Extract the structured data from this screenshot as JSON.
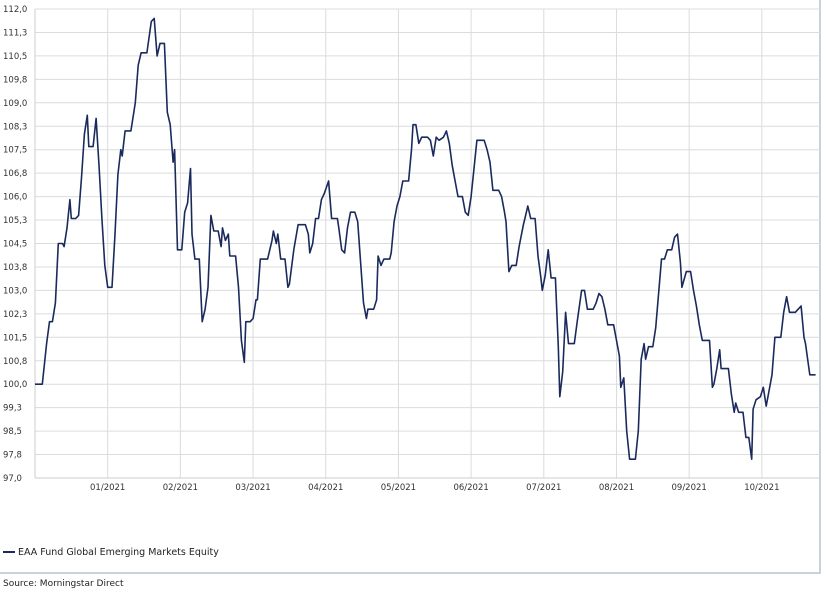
{
  "colors": {
    "series": "#1a2a5c",
    "grid": "#dcdcdc",
    "background": "#ffffff"
  },
  "legend": {
    "label": "EAA Fund Global Emerging Markets Equity"
  },
  "source": {
    "text": "Source: Morningstar Direct"
  },
  "chart_data": {
    "type": "line",
    "title": "",
    "xlabel": "",
    "ylabel": "",
    "ylim": [
      97.0,
      112.0
    ],
    "y_ticks": [
      "112,0",
      "111,3",
      "110,5",
      "109,8",
      "109,0",
      "108,3",
      "107,5",
      "106,8",
      "106,0",
      "105,3",
      "104,5",
      "103,8",
      "103,0",
      "102,3",
      "101,5",
      "100,8",
      "100,0",
      "99,3",
      "98,5",
      "97,8",
      "97,0"
    ],
    "y_tick_values": [
      112.0,
      111.25,
      110.5,
      109.75,
      109.0,
      108.25,
      107.5,
      106.75,
      106.0,
      105.25,
      104.5,
      103.75,
      103.0,
      102.25,
      101.5,
      100.75,
      100.0,
      99.25,
      98.5,
      97.75,
      97.0
    ],
    "x_ticks": [
      "01/2021",
      "02/2021",
      "03/2021",
      "04/2021",
      "05/2021",
      "06/2021",
      "07/2021",
      "08/2021",
      "09/2021",
      "10/2021"
    ],
    "x_tick_positions": [
      5,
      10,
      15,
      20,
      25,
      30,
      35,
      40,
      45,
      50
    ],
    "grid": true,
    "legend_position": "bottom-left",
    "series": [
      {
        "name": "EAA Fund Global Emerging Markets Equity",
        "points": [
          [
            0.0,
            100.0
          ],
          [
            0.5,
            100.0
          ],
          [
            0.8,
            101.3
          ],
          [
            1.0,
            102.0
          ],
          [
            1.2,
            102.0
          ],
          [
            1.4,
            102.6
          ],
          [
            1.6,
            104.5
          ],
          [
            1.9,
            104.5
          ],
          [
            2.0,
            104.4
          ],
          [
            2.2,
            105.0
          ],
          [
            2.4,
            105.9
          ],
          [
            2.5,
            105.3
          ],
          [
            2.8,
            105.3
          ],
          [
            3.0,
            105.4
          ],
          [
            3.2,
            106.6
          ],
          [
            3.4,
            108.0
          ],
          [
            3.6,
            108.6
          ],
          [
            3.7,
            107.6
          ],
          [
            4.0,
            107.6
          ],
          [
            4.2,
            108.5
          ],
          [
            4.4,
            107.0
          ],
          [
            4.6,
            105.3
          ],
          [
            4.8,
            103.8
          ],
          [
            5.0,
            103.1
          ],
          [
            5.3,
            103.1
          ],
          [
            5.5,
            104.8
          ],
          [
            5.7,
            106.7
          ],
          [
            5.9,
            107.5
          ],
          [
            6.0,
            107.3
          ],
          [
            6.2,
            108.1
          ],
          [
            6.6,
            108.1
          ],
          [
            6.9,
            109.0
          ],
          [
            7.1,
            110.2
          ],
          [
            7.3,
            110.6
          ],
          [
            7.5,
            110.6
          ],
          [
            7.7,
            110.6
          ],
          [
            8.0,
            111.6
          ],
          [
            8.2,
            111.7
          ],
          [
            8.4,
            110.5
          ],
          [
            8.6,
            110.9
          ],
          [
            8.9,
            110.9
          ],
          [
            9.1,
            108.7
          ],
          [
            9.3,
            108.3
          ],
          [
            9.5,
            107.1
          ],
          [
            9.6,
            107.5
          ],
          [
            9.8,
            104.3
          ],
          [
            10.1,
            104.3
          ],
          [
            10.3,
            105.5
          ],
          [
            10.5,
            105.8
          ],
          [
            10.7,
            106.9
          ],
          [
            10.8,
            104.8
          ],
          [
            11.0,
            104.0
          ],
          [
            11.3,
            104.0
          ],
          [
            11.5,
            102.0
          ],
          [
            11.7,
            102.4
          ],
          [
            11.9,
            103.1
          ],
          [
            12.1,
            105.4
          ],
          [
            12.3,
            104.9
          ],
          [
            12.6,
            104.9
          ],
          [
            12.8,
            104.4
          ],
          [
            12.9,
            105.0
          ],
          [
            13.1,
            104.6
          ],
          [
            13.3,
            104.8
          ],
          [
            13.4,
            104.1
          ],
          [
            13.8,
            104.1
          ],
          [
            14.0,
            103.1
          ],
          [
            14.2,
            101.4
          ],
          [
            14.4,
            100.7
          ],
          [
            14.5,
            102.0
          ],
          [
            14.8,
            102.0
          ],
          [
            15.0,
            102.1
          ],
          [
            15.2,
            102.7
          ],
          [
            15.3,
            102.7
          ],
          [
            15.5,
            104.0
          ],
          [
            15.9,
            104.0
          ],
          [
            16.0,
            104.0
          ],
          [
            16.3,
            104.6
          ],
          [
            16.4,
            104.9
          ],
          [
            16.6,
            104.5
          ],
          [
            16.7,
            104.8
          ],
          [
            16.9,
            104.0
          ],
          [
            17.2,
            104.0
          ],
          [
            17.4,
            103.1
          ],
          [
            17.5,
            103.2
          ],
          [
            17.8,
            104.3
          ],
          [
            18.1,
            105.1
          ],
          [
            18.6,
            105.1
          ],
          [
            18.8,
            104.8
          ],
          [
            18.9,
            104.2
          ],
          [
            19.1,
            104.5
          ],
          [
            19.3,
            105.3
          ],
          [
            19.5,
            105.3
          ],
          [
            19.7,
            105.9
          ],
          [
            19.9,
            106.1
          ],
          [
            20.2,
            106.5
          ],
          [
            20.4,
            105.3
          ],
          [
            20.8,
            105.3
          ],
          [
            20.9,
            105.0
          ],
          [
            21.1,
            104.3
          ],
          [
            21.3,
            104.2
          ],
          [
            21.5,
            105.0
          ],
          [
            21.7,
            105.5
          ],
          [
            22.0,
            105.5
          ],
          [
            22.2,
            105.2
          ],
          [
            22.4,
            103.9
          ],
          [
            22.6,
            102.6
          ],
          [
            22.8,
            102.1
          ],
          [
            22.9,
            102.4
          ],
          [
            23.3,
            102.4
          ],
          [
            23.5,
            102.7
          ],
          [
            23.6,
            104.1
          ],
          [
            23.8,
            103.8
          ],
          [
            24.0,
            104.0
          ],
          [
            24.4,
            104.0
          ],
          [
            24.5,
            104.2
          ],
          [
            24.7,
            105.2
          ],
          [
            24.9,
            105.7
          ],
          [
            25.1,
            106.0
          ],
          [
            25.3,
            106.5
          ],
          [
            25.7,
            106.5
          ],
          [
            25.9,
            107.5
          ],
          [
            26.0,
            108.3
          ],
          [
            26.2,
            108.3
          ],
          [
            26.4,
            107.7
          ],
          [
            26.6,
            107.9
          ],
          [
            27.0,
            107.9
          ],
          [
            27.2,
            107.8
          ],
          [
            27.4,
            107.3
          ],
          [
            27.6,
            107.9
          ],
          [
            27.8,
            107.8
          ],
          [
            28.1,
            107.9
          ],
          [
            28.3,
            108.1
          ],
          [
            28.5,
            107.7
          ],
          [
            28.7,
            107.0
          ],
          [
            28.9,
            106.5
          ],
          [
            29.1,
            106.0
          ],
          [
            29.4,
            106.0
          ],
          [
            29.6,
            105.5
          ],
          [
            29.8,
            105.4
          ],
          [
            30.0,
            106.0
          ],
          [
            30.2,
            106.9
          ],
          [
            30.4,
            107.8
          ],
          [
            30.9,
            107.8
          ],
          [
            31.1,
            107.5
          ],
          [
            31.3,
            107.1
          ],
          [
            31.5,
            106.2
          ],
          [
            31.9,
            106.2
          ],
          [
            32.1,
            106.0
          ],
          [
            32.3,
            105.5
          ],
          [
            32.4,
            105.2
          ],
          [
            32.6,
            103.6
          ],
          [
            32.8,
            103.8
          ],
          [
            33.1,
            103.8
          ],
          [
            33.3,
            104.4
          ],
          [
            33.6,
            105.1
          ],
          [
            33.7,
            105.3
          ],
          [
            33.9,
            105.7
          ],
          [
            34.1,
            105.3
          ],
          [
            34.4,
            105.3
          ],
          [
            34.6,
            104.1
          ],
          [
            34.8,
            103.4
          ],
          [
            34.9,
            103.0
          ],
          [
            35.1,
            103.5
          ],
          [
            35.3,
            104.3
          ],
          [
            35.5,
            103.4
          ],
          [
            35.8,
            103.4
          ],
          [
            36.0,
            101.2
          ],
          [
            36.1,
            99.6
          ],
          [
            36.3,
            100.4
          ],
          [
            36.5,
            102.3
          ],
          [
            36.7,
            101.3
          ],
          [
            37.0,
            101.3
          ],
          [
            37.1,
            101.3
          ],
          [
            37.3,
            102.0
          ],
          [
            37.6,
            103.0
          ],
          [
            37.8,
            103.0
          ],
          [
            38.0,
            102.4
          ],
          [
            38.4,
            102.4
          ],
          [
            38.6,
            102.6
          ],
          [
            38.8,
            102.9
          ],
          [
            39.0,
            102.8
          ],
          [
            39.2,
            102.4
          ],
          [
            39.4,
            101.9
          ],
          [
            39.8,
            101.9
          ],
          [
            40.0,
            101.4
          ],
          [
            40.2,
            100.9
          ],
          [
            40.3,
            99.9
          ],
          [
            40.5,
            100.2
          ],
          [
            40.7,
            98.5
          ],
          [
            40.9,
            97.6
          ],
          [
            41.3,
            97.6
          ],
          [
            41.5,
            98.5
          ],
          [
            41.7,
            100.8
          ],
          [
            41.9,
            101.3
          ],
          [
            42.0,
            100.8
          ],
          [
            42.2,
            101.2
          ],
          [
            42.5,
            101.2
          ],
          [
            42.7,
            101.8
          ],
          [
            42.9,
            102.9
          ],
          [
            43.1,
            104.0
          ],
          [
            43.3,
            104.0
          ],
          [
            43.5,
            104.3
          ],
          [
            43.8,
            104.3
          ],
          [
            44.0,
            104.7
          ],
          [
            44.2,
            104.8
          ],
          [
            44.4,
            103.9
          ],
          [
            44.5,
            103.1
          ],
          [
            44.8,
            103.6
          ],
          [
            45.1,
            103.6
          ],
          [
            45.3,
            103.0
          ],
          [
            45.5,
            102.5
          ],
          [
            45.7,
            101.9
          ],
          [
            45.9,
            101.4
          ],
          [
            46.4,
            101.4
          ],
          [
            46.6,
            99.9
          ],
          [
            46.7,
            100.0
          ],
          [
            46.9,
            100.5
          ],
          [
            47.1,
            101.1
          ],
          [
            47.2,
            100.5
          ],
          [
            47.4,
            100.5
          ],
          [
            47.7,
            100.5
          ],
          [
            47.9,
            99.7
          ],
          [
            48.1,
            99.1
          ],
          [
            48.2,
            99.4
          ],
          [
            48.4,
            99.1
          ],
          [
            48.7,
            99.1
          ],
          [
            48.9,
            98.3
          ],
          [
            49.1,
            98.3
          ],
          [
            49.3,
            97.6
          ],
          [
            49.4,
            99.2
          ],
          [
            49.6,
            99.5
          ],
          [
            49.9,
            99.6
          ],
          [
            50.1,
            99.9
          ],
          [
            50.3,
            99.3
          ],
          [
            50.5,
            99.8
          ],
          [
            50.7,
            100.3
          ],
          [
            50.9,
            101.5
          ],
          [
            51.3,
            101.5
          ],
          [
            51.5,
            102.3
          ],
          [
            51.7,
            102.8
          ],
          [
            51.9,
            102.3
          ],
          [
            52.3,
            102.3
          ],
          [
            52.5,
            102.4
          ],
          [
            52.7,
            102.5
          ],
          [
            52.9,
            101.5
          ],
          [
            53.0,
            101.3
          ],
          [
            53.3,
            100.3
          ],
          [
            53.7,
            100.3
          ]
        ]
      }
    ]
  }
}
